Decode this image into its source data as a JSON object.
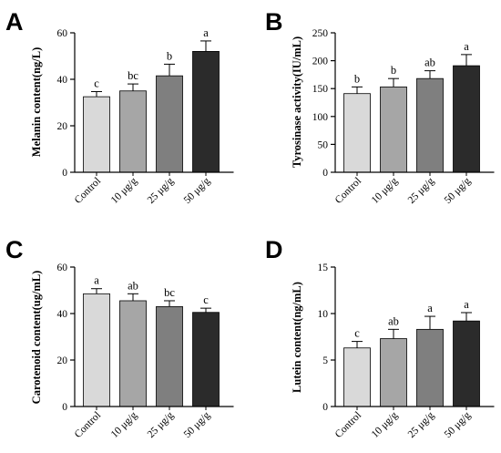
{
  "chart_data": [
    {
      "panel": "A",
      "type": "bar",
      "ylabel": "Melanin content(ng/L)",
      "categories": [
        "Control",
        "10 μg/g",
        "25 μg/g",
        "50 μg/g"
      ],
      "values": [
        32.5,
        35,
        41.5,
        52
      ],
      "errors": [
        2.2,
        3,
        5,
        4.5
      ],
      "labels": [
        "c",
        "bc",
        "b",
        "a"
      ],
      "ylim": [
        0,
        60
      ],
      "yticks": [
        "0",
        "20",
        "40",
        "60"
      ],
      "colors": [
        "#d9d9d9",
        "#a6a6a6",
        "#7f7f7f",
        "#2b2b2b"
      ]
    },
    {
      "panel": "B",
      "type": "bar",
      "ylabel": "Tyrosinase activity(IU/mL)",
      "categories": [
        "Control",
        "10 μg/g",
        "25 μg/g",
        "50 μg/g"
      ],
      "values": [
        141,
        153,
        168,
        191
      ],
      "errors": [
        12,
        15,
        14,
        20
      ],
      "labels": [
        "b",
        "b",
        "ab",
        "a"
      ],
      "ylim": [
        0,
        250
      ],
      "yticks": [
        "0",
        "50",
        "100",
        "150",
        "200",
        "250"
      ],
      "colors": [
        "#d9d9d9",
        "#a6a6a6",
        "#7f7f7f",
        "#2b2b2b"
      ]
    },
    {
      "panel": "C",
      "type": "bar",
      "ylabel": "Carotenoid content(ug/mL)",
      "categories": [
        "Control",
        "10 μg/g",
        "25 μg/g",
        "50 μg/g"
      ],
      "values": [
        48.5,
        45.5,
        43,
        40.5
      ],
      "errors": [
        2.2,
        3,
        2.5,
        1.8
      ],
      "labels": [
        "a",
        "ab",
        "bc",
        "c"
      ],
      "ylim": [
        0,
        60
      ],
      "yticks": [
        "0",
        "20",
        "40",
        "60"
      ],
      "colors": [
        "#d9d9d9",
        "#a6a6a6",
        "#7f7f7f",
        "#2b2b2b"
      ]
    },
    {
      "panel": "D",
      "type": "bar",
      "ylabel": "Lutein content(ng/mL)",
      "categories": [
        "Control",
        "10 μg/g",
        "25 μg/g",
        "50 μg/g"
      ],
      "values": [
        6.3,
        7.3,
        8.3,
        9.2
      ],
      "errors": [
        0.7,
        1.0,
        1.4,
        0.9
      ],
      "labels": [
        "c",
        "ab",
        "a",
        "a"
      ],
      "ylim": [
        0,
        15
      ],
      "yticks": [
        "0",
        "5",
        "10",
        "15"
      ],
      "colors": [
        "#d9d9d9",
        "#a6a6a6",
        "#7f7f7f",
        "#2b2b2b"
      ]
    }
  ]
}
